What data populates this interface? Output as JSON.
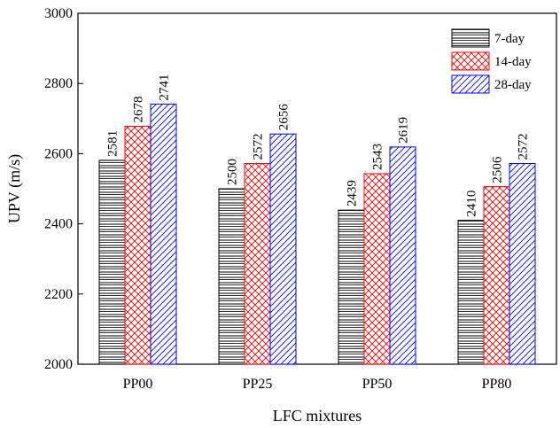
{
  "chart_data": {
    "type": "bar",
    "title": "",
    "xlabel": "LFC mixtures",
    "ylabel": "UPV (m/s)",
    "ylim": [
      2000,
      3000
    ],
    "yticks": [
      2000,
      2200,
      2400,
      2600,
      2800,
      3000
    ],
    "categories": [
      "PP00",
      "PP25",
      "PP50",
      "PP80"
    ],
    "legend_position": "top-right",
    "series": [
      {
        "name": "7-day",
        "values": [
          2581,
          2500,
          2439,
          2410
        ],
        "color": "#000000",
        "pattern": "horizontal-lines"
      },
      {
        "name": "14-day",
        "values": [
          2678,
          2572,
          2543,
          2506
        ],
        "color": "#ff0000",
        "pattern": "crosshatch"
      },
      {
        "name": "28-day",
        "values": [
          2741,
          2656,
          2619,
          2572
        ],
        "color": "#0000ff",
        "pattern": "diagonal-lines"
      }
    ]
  }
}
